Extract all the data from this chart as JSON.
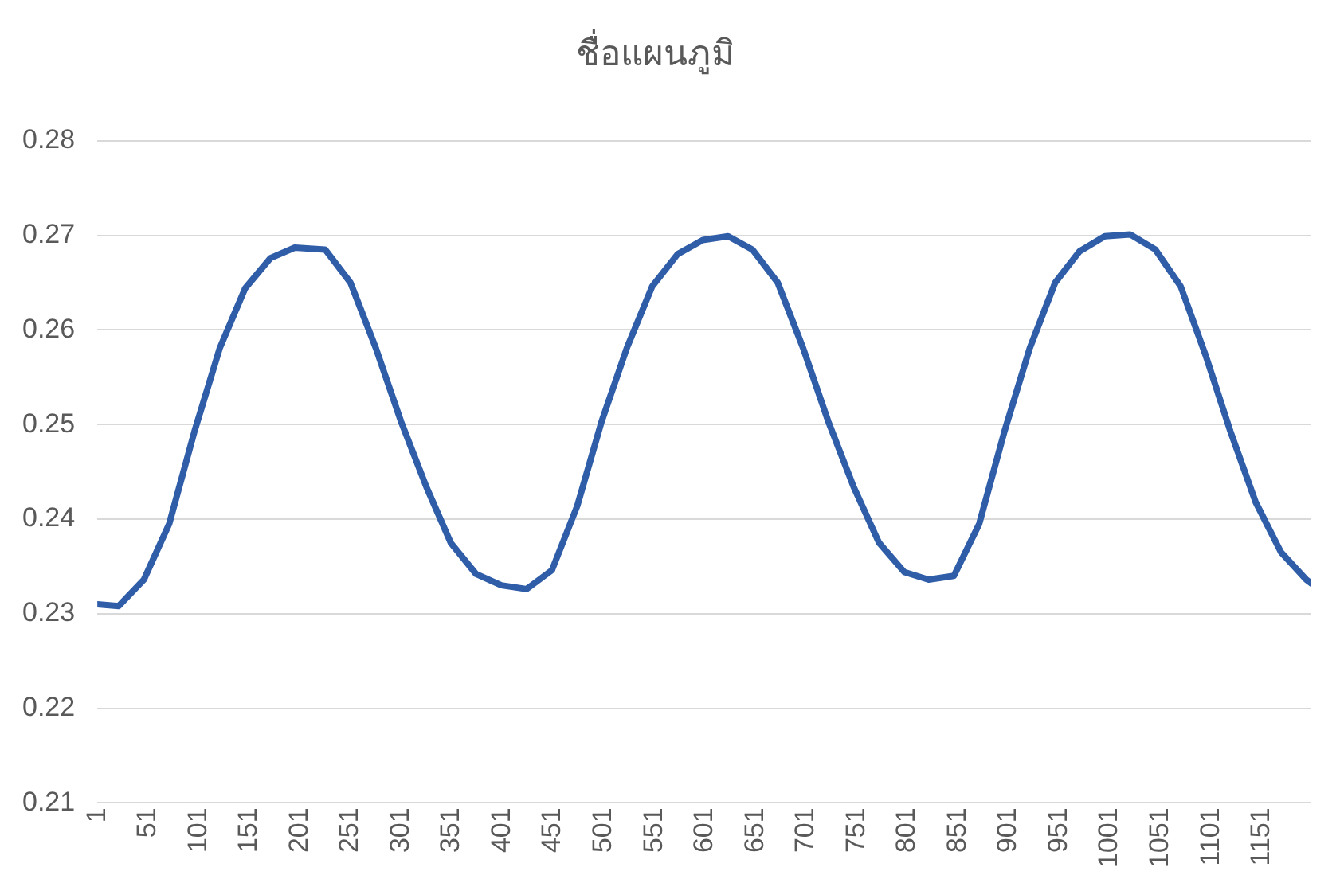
{
  "chart_data": {
    "type": "line",
    "title": "ชื่อแผนภูมิ",
    "x": [
      1,
      22,
      47,
      72,
      97,
      122,
      147,
      172,
      196,
      226,
      251,
      276,
      301,
      326,
      350,
      375,
      400,
      425,
      450,
      475,
      499,
      524,
      549,
      574,
      599,
      624,
      648,
      673,
      698,
      723,
      748,
      773,
      798,
      822,
      847,
      872,
      897,
      922,
      947,
      971,
      996,
      1021,
      1046,
      1071,
      1096,
      1120,
      1145,
      1170,
      1195,
      1200
    ],
    "series": [
      {
        "color": "#2f5da8",
        "values": [
          0.231,
          0.2308,
          0.2336,
          0.2395,
          0.2493,
          0.2581,
          0.2644,
          0.2676,
          0.2687,
          0.2685,
          0.265,
          0.2581,
          0.2503,
          0.2434,
          0.2375,
          0.2342,
          0.233,
          0.2326,
          0.2346,
          0.2414,
          0.2503,
          0.2581,
          0.2646,
          0.268,
          0.2695,
          0.2699,
          0.2685,
          0.265,
          0.2581,
          0.2503,
          0.2434,
          0.2375,
          0.2344,
          0.2336,
          0.234,
          0.2395,
          0.2493,
          0.2581,
          0.265,
          0.2683,
          0.2699,
          0.2701,
          0.2685,
          0.2646,
          0.2572,
          0.2493,
          0.2418,
          0.2365,
          0.2336,
          0.2332
        ]
      }
    ],
    "xlim": [
      1,
      1200
    ],
    "xticks": [
      1,
      51,
      101,
      151,
      201,
      251,
      301,
      351,
      401,
      451,
      501,
      551,
      601,
      651,
      701,
      751,
      801,
      851,
      901,
      951,
      1001,
      1051,
      1101,
      1151
    ],
    "ylim": [
      0.21,
      0.28
    ],
    "yticks": [
      0.21,
      0.22,
      0.23,
      0.24,
      0.25,
      0.26,
      0.27,
      0.28
    ],
    "grid": "y",
    "legend": false,
    "marker": "none",
    "line_style": "solid"
  }
}
